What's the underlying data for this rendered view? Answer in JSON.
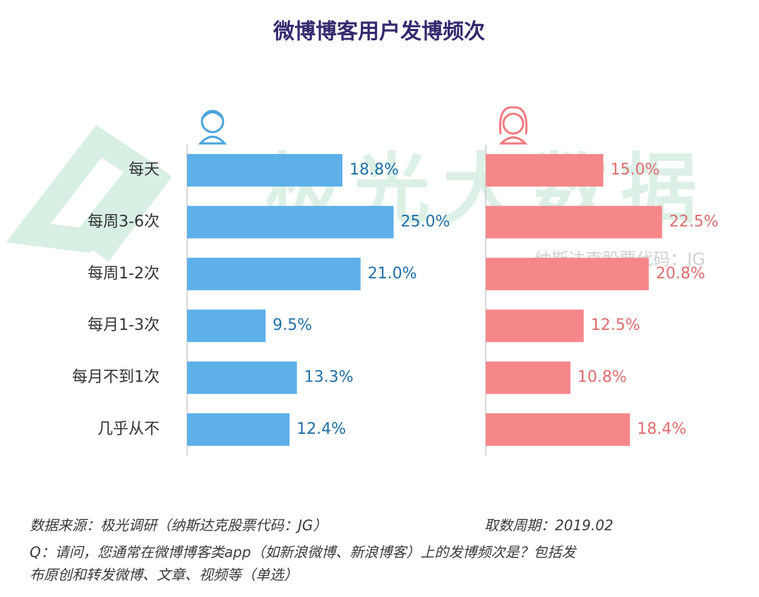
{
  "chart_data": {
    "type": "bar",
    "orientation": "horizontal",
    "title": "微博博客用户发博频次",
    "categories": [
      "每天",
      "每周3-6次",
      "每周1-2次",
      "每月1-3次",
      "每月不到1次",
      "几乎从不"
    ],
    "series": [
      {
        "color": "#5db0e8",
        "label_color": "#1f6fa6",
        "values": [
          18.8,
          25.0,
          21.0,
          9.5,
          13.3,
          12.4
        ],
        "value_labels": [
          "18.8%",
          "25.0%",
          "21.0%",
          "9.5%",
          "13.3%",
          "12.4%"
        ]
      },
      {
        "color": "#f5878b",
        "label_color": "#e06c6e",
        "values": [
          15.0,
          22.5,
          20.8,
          12.5,
          10.8,
          18.4
        ],
        "value_labels": [
          "15.0%",
          "22.5%",
          "20.8%",
          "12.5%",
          "10.8%",
          "18.4%"
        ]
      }
    ],
    "watermark": "极光大数据",
    "watermark_sub": "纳斯达克股票代码：JG",
    "source": "数据来源：极光调研（纳斯达克股票代码：JG）",
    "period": "取数周期：2019.02",
    "question": [
      "Q：请问，您通常在微博博客类app（如新浪微博、新浪博客）上的发博频次是？包括发",
      "布原创和转发微博、文章、视频等（单选）"
    ]
  }
}
